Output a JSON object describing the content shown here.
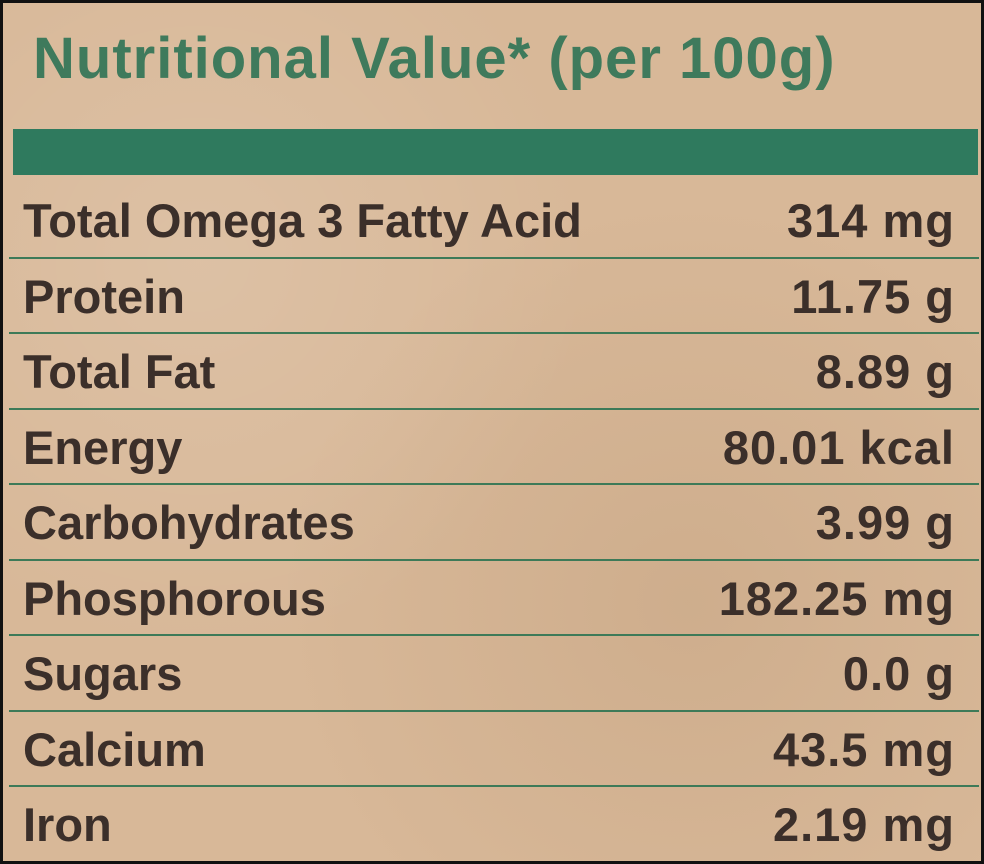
{
  "title": "Nutritional Value* (per 100g)",
  "table": {
    "rows": [
      [
        "Total Omega 3 Fatty Acid",
        "314 mg"
      ],
      [
        "Protein",
        "11.75 g"
      ],
      [
        "Total Fat",
        "8.89 g"
      ],
      [
        "Energy",
        "80.01 kcal"
      ],
      [
        "Carbohydrates",
        "3.99 g"
      ],
      [
        "Phosphorous",
        "182.25 mg"
      ],
      [
        "Sugars",
        "0.0 g"
      ],
      [
        "Calcium",
        "43.5 mg"
      ],
      [
        "Iron",
        "2.19 mg"
      ]
    ]
  }
}
